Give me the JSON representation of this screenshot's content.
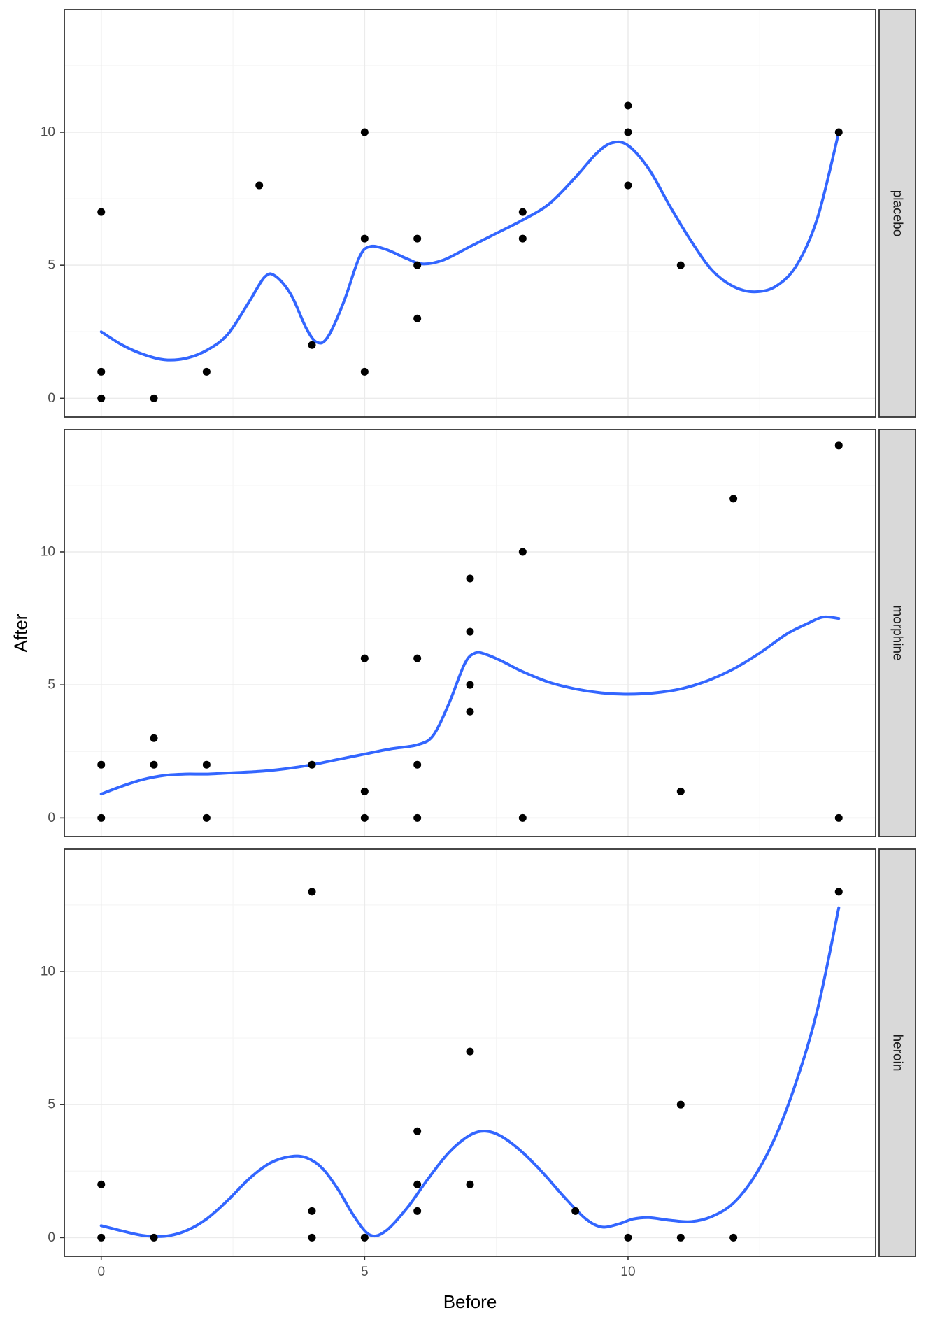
{
  "chart_data": {
    "type": "scatter",
    "title": "",
    "xlabel": "Before",
    "ylabel": "After",
    "x_domain": [
      -0.7,
      14.7
    ],
    "y_domain": [
      -0.7,
      14.6
    ],
    "x_major_ticks": [
      0,
      5,
      10
    ],
    "x_minor_ticks": [
      2.5,
      7.5,
      12.5
    ],
    "y_major_ticks": [
      0,
      5,
      10
    ],
    "y_minor_ticks": [
      2.5,
      7.5,
      12.5
    ],
    "legend": "none",
    "grid": "on",
    "facet_layout": "rows",
    "colors": {
      "point": "#000000",
      "smooth_line": "#3366FF",
      "strip_fill": "#D9D9D9",
      "strip_text": "#1A1A1A",
      "grid_major": "#EBEBEB",
      "grid_minor": "#F5F5F5",
      "panel_border": "#333333",
      "tick_text": "#4D4D4D",
      "panel_background": "#FFFFFF"
    },
    "facets": [
      {
        "label": "placebo",
        "points": [
          [
            0,
            0
          ],
          [
            0,
            1
          ],
          [
            0,
            7
          ],
          [
            1,
            0
          ],
          [
            2,
            1
          ],
          [
            3,
            8
          ],
          [
            4,
            2
          ],
          [
            5,
            1
          ],
          [
            5,
            6
          ],
          [
            5,
            10
          ],
          [
            6,
            3
          ],
          [
            6,
            5
          ],
          [
            6,
            6
          ],
          [
            8,
            6
          ],
          [
            8,
            7
          ],
          [
            10,
            8
          ],
          [
            10,
            10
          ],
          [
            10,
            11
          ],
          [
            11,
            5
          ],
          [
            14,
            10
          ]
        ],
        "smooth": [
          [
            0,
            2.5
          ],
          [
            0.4,
            2.0
          ],
          [
            0.8,
            1.65
          ],
          [
            1.2,
            1.45
          ],
          [
            1.6,
            1.5
          ],
          [
            2.0,
            1.8
          ],
          [
            2.4,
            2.4
          ],
          [
            2.8,
            3.6
          ],
          [
            3.1,
            4.55
          ],
          [
            3.3,
            4.6
          ],
          [
            3.6,
            3.9
          ],
          [
            3.9,
            2.6
          ],
          [
            4.1,
            2.1
          ],
          [
            4.3,
            2.3
          ],
          [
            4.6,
            3.6
          ],
          [
            4.9,
            5.3
          ],
          [
            5.1,
            5.7
          ],
          [
            5.4,
            5.6
          ],
          [
            5.8,
            5.25
          ],
          [
            6.1,
            5.05
          ],
          [
            6.5,
            5.2
          ],
          [
            7.0,
            5.7
          ],
          [
            7.5,
            6.2
          ],
          [
            8.0,
            6.7
          ],
          [
            8.5,
            7.3
          ],
          [
            9.0,
            8.3
          ],
          [
            9.4,
            9.2
          ],
          [
            9.7,
            9.6
          ],
          [
            10.0,
            9.5
          ],
          [
            10.4,
            8.6
          ],
          [
            10.8,
            7.2
          ],
          [
            11.2,
            5.9
          ],
          [
            11.6,
            4.8
          ],
          [
            12.0,
            4.2
          ],
          [
            12.4,
            4.0
          ],
          [
            12.8,
            4.2
          ],
          [
            13.2,
            5.0
          ],
          [
            13.6,
            6.8
          ],
          [
            14.0,
            10.0
          ]
        ]
      },
      {
        "label": "morphine",
        "points": [
          [
            0,
            0
          ],
          [
            0,
            2
          ],
          [
            1,
            2
          ],
          [
            1,
            3
          ],
          [
            2,
            0
          ],
          [
            2,
            2
          ],
          [
            4,
            2
          ],
          [
            5,
            0
          ],
          [
            5,
            1
          ],
          [
            5,
            6
          ],
          [
            6,
            0
          ],
          [
            6,
            2
          ],
          [
            6,
            6
          ],
          [
            7,
            4
          ],
          [
            7,
            5
          ],
          [
            7,
            7
          ],
          [
            7,
            9
          ],
          [
            8,
            0
          ],
          [
            8,
            10
          ],
          [
            11,
            1
          ],
          [
            12,
            12
          ],
          [
            14,
            0
          ],
          [
            14,
            14
          ]
        ],
        "smooth": [
          [
            0,
            0.9
          ],
          [
            0.4,
            1.2
          ],
          [
            0.8,
            1.45
          ],
          [
            1.2,
            1.6
          ],
          [
            1.6,
            1.65
          ],
          [
            2.0,
            1.65
          ],
          [
            2.5,
            1.7
          ],
          [
            3.0,
            1.75
          ],
          [
            3.5,
            1.85
          ],
          [
            4.0,
            2.0
          ],
          [
            4.5,
            2.2
          ],
          [
            5.0,
            2.4
          ],
          [
            5.5,
            2.6
          ],
          [
            6.0,
            2.75
          ],
          [
            6.3,
            3.1
          ],
          [
            6.6,
            4.3
          ],
          [
            6.9,
            5.8
          ],
          [
            7.1,
            6.2
          ],
          [
            7.3,
            6.15
          ],
          [
            7.6,
            5.9
          ],
          [
            8.0,
            5.5
          ],
          [
            8.5,
            5.1
          ],
          [
            9.0,
            4.85
          ],
          [
            9.5,
            4.7
          ],
          [
            10.0,
            4.65
          ],
          [
            10.5,
            4.7
          ],
          [
            11.0,
            4.85
          ],
          [
            11.5,
            5.15
          ],
          [
            12.0,
            5.6
          ],
          [
            12.5,
            6.2
          ],
          [
            13.0,
            6.9
          ],
          [
            13.4,
            7.3
          ],
          [
            13.7,
            7.55
          ],
          [
            14.0,
            7.5
          ]
        ]
      },
      {
        "label": "heroin",
        "points": [
          [
            0,
            0
          ],
          [
            0,
            2
          ],
          [
            1,
            0
          ],
          [
            4,
            0
          ],
          [
            4,
            1
          ],
          [
            4,
            13
          ],
          [
            5,
            0
          ],
          [
            6,
            1
          ],
          [
            6,
            2
          ],
          [
            6,
            4
          ],
          [
            7,
            2
          ],
          [
            7,
            7
          ],
          [
            9,
            1
          ],
          [
            10,
            0
          ],
          [
            11,
            0
          ],
          [
            11,
            5
          ],
          [
            12,
            0
          ],
          [
            14,
            13
          ]
        ],
        "smooth": [
          [
            0,
            0.45
          ],
          [
            0.4,
            0.25
          ],
          [
            0.8,
            0.08
          ],
          [
            1.2,
            0.05
          ],
          [
            1.6,
            0.25
          ],
          [
            2.0,
            0.7
          ],
          [
            2.4,
            1.4
          ],
          [
            2.8,
            2.2
          ],
          [
            3.2,
            2.8
          ],
          [
            3.6,
            3.05
          ],
          [
            3.9,
            3.0
          ],
          [
            4.2,
            2.6
          ],
          [
            4.5,
            1.8
          ],
          [
            4.8,
            0.8
          ],
          [
            5.1,
            0.1
          ],
          [
            5.4,
            0.25
          ],
          [
            5.8,
            1.1
          ],
          [
            6.2,
            2.2
          ],
          [
            6.6,
            3.2
          ],
          [
            7.0,
            3.85
          ],
          [
            7.3,
            4.0
          ],
          [
            7.6,
            3.8
          ],
          [
            8.0,
            3.2
          ],
          [
            8.4,
            2.4
          ],
          [
            8.8,
            1.5
          ],
          [
            9.2,
            0.7
          ],
          [
            9.5,
            0.4
          ],
          [
            9.8,
            0.5
          ],
          [
            10.1,
            0.7
          ],
          [
            10.4,
            0.75
          ],
          [
            10.8,
            0.65
          ],
          [
            11.2,
            0.6
          ],
          [
            11.6,
            0.8
          ],
          [
            12.0,
            1.3
          ],
          [
            12.4,
            2.3
          ],
          [
            12.8,
            3.8
          ],
          [
            13.2,
            5.9
          ],
          [
            13.6,
            8.6
          ],
          [
            14.0,
            12.4
          ]
        ]
      }
    ]
  }
}
